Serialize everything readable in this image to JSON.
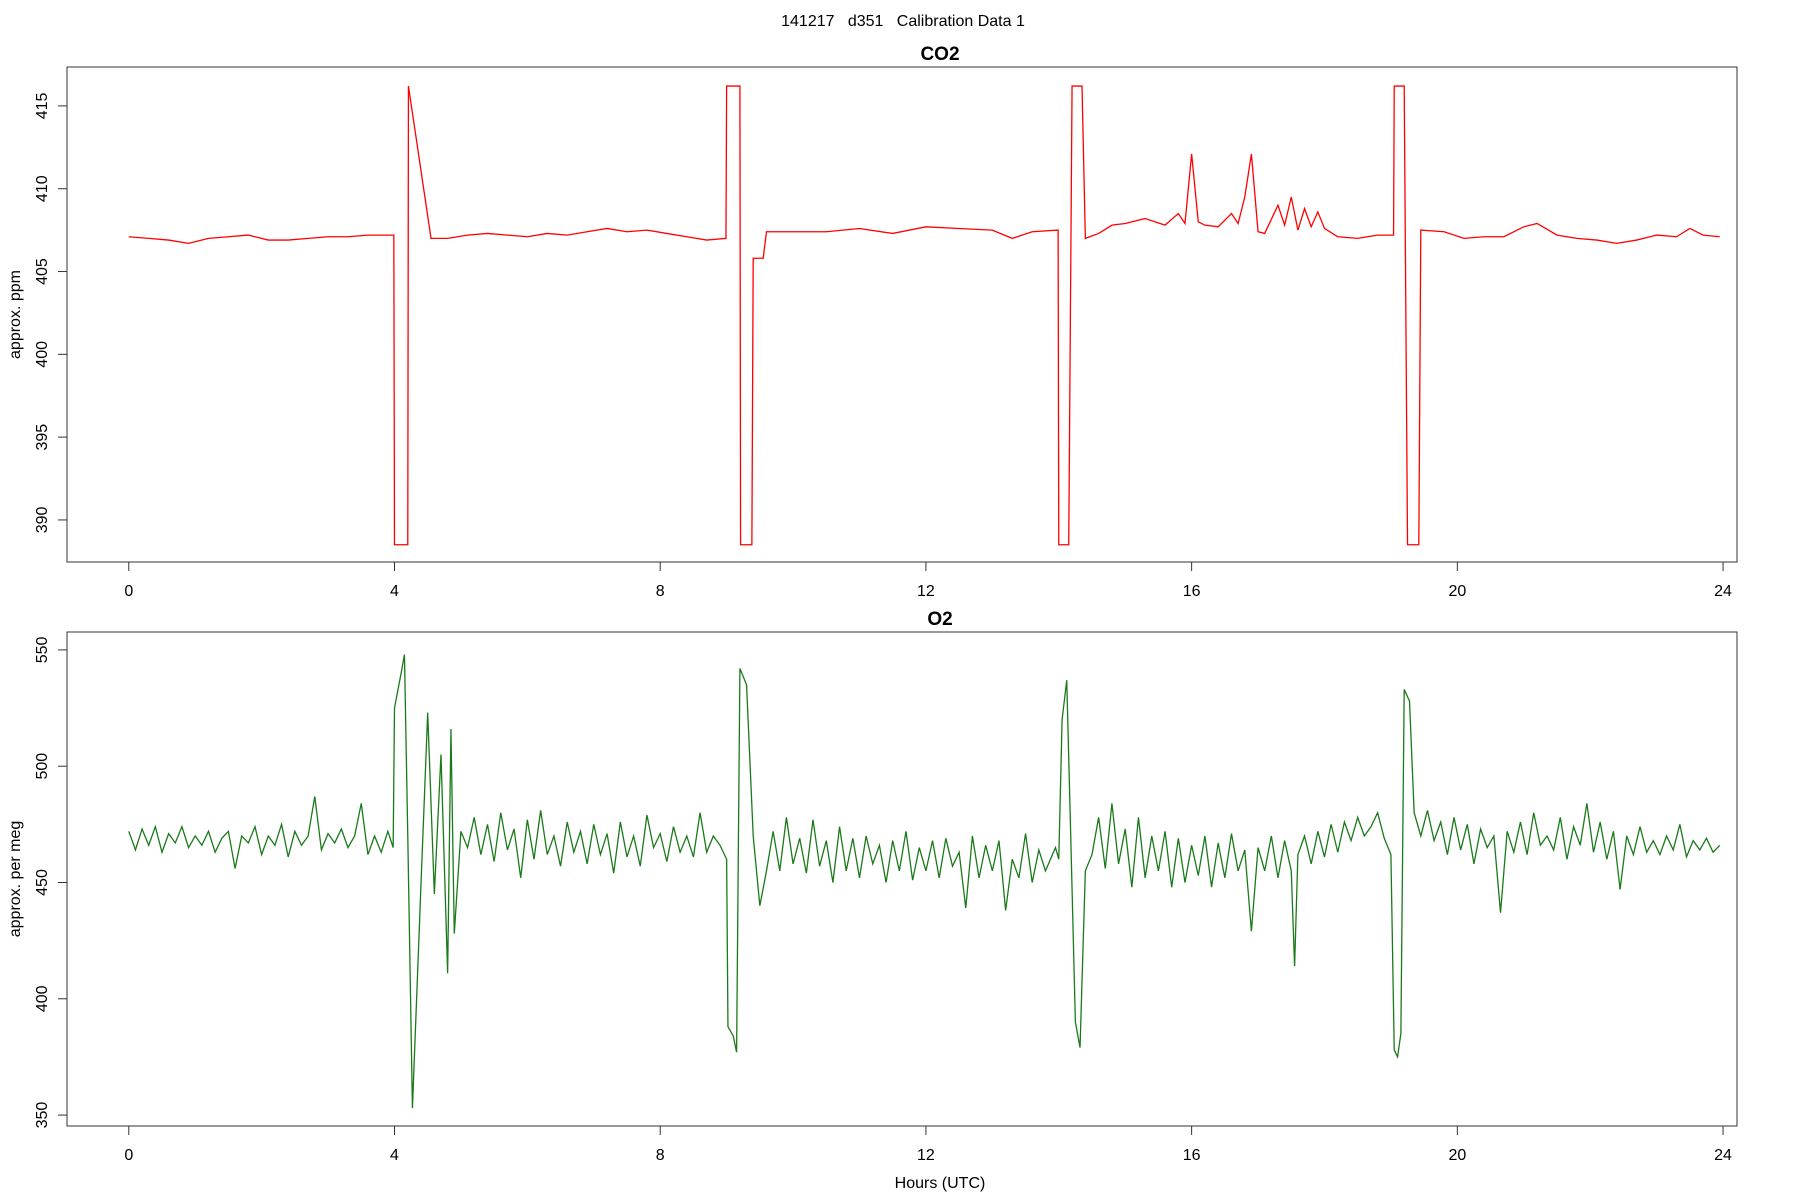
{
  "title": "141217   d351   Calibration Data 1",
  "chart_data": [
    {
      "type": "line",
      "title": "CO2",
      "y_label": "approx. ppm",
      "color": "#ff0000",
      "xlim": [
        -0.93,
        24.21
      ],
      "ylim": [
        387.46,
        417.35
      ],
      "xticks": [
        0,
        4,
        8,
        12,
        16,
        20,
        24
      ],
      "yticks": [
        390,
        395,
        400,
        405,
        410,
        415
      ],
      "x": [
        0,
        0.3,
        0.6,
        0.9,
        1.2,
        1.5,
        1.8,
        2.1,
        2.4,
        2.7,
        3,
        3.3,
        3.6,
        3.99,
        4,
        4.2,
        4.21,
        4.55,
        4.8,
        5.1,
        5.4,
        5.7,
        6,
        6.3,
        6.6,
        6.9,
        7.2,
        7.5,
        7.8,
        8.1,
        8.4,
        8.7,
        8.99,
        9,
        9.2,
        9.21,
        9.38,
        9.4,
        9.55,
        9.6,
        10,
        10.5,
        11,
        11.5,
        12,
        12.5,
        13,
        13.3,
        13.6,
        13.99,
        14,
        14.15,
        14.2,
        14.35,
        14.4,
        14.6,
        14.8,
        15,
        15.3,
        15.6,
        15.8,
        15.9,
        16,
        16.1,
        16.2,
        16.4,
        16.6,
        16.7,
        16.8,
        16.9,
        17,
        17.1,
        17.3,
        17.4,
        17.5,
        17.6,
        17.7,
        17.8,
        17.9,
        18,
        18.2,
        18.5,
        18.8,
        19.04,
        19.05,
        19.2,
        19.25,
        19.42,
        19.45,
        19.8,
        20.1,
        20.4,
        20.7,
        21,
        21.2,
        21.5,
        21.8,
        22.1,
        22.4,
        22.7,
        23,
        23.3,
        23.5,
        23.7,
        23.95
      ],
      "values": [
        407.1,
        407.0,
        406.9,
        406.7,
        407.0,
        407.1,
        407.2,
        406.9,
        406.9,
        407.0,
        407.1,
        407.1,
        407.2,
        407.2,
        388.5,
        388.5,
        416.2,
        407.0,
        407.0,
        407.2,
        407.3,
        407.2,
        407.1,
        407.3,
        407.2,
        407.4,
        407.6,
        407.4,
        407.5,
        407.3,
        407.1,
        406.9,
        407.0,
        416.2,
        416.2,
        388.5,
        388.5,
        405.8,
        405.8,
        407.4,
        407.4,
        407.4,
        407.6,
        407.3,
        407.7,
        407.6,
        407.5,
        407.0,
        407.4,
        407.5,
        388.5,
        388.5,
        416.2,
        416.2,
        407.0,
        407.3,
        407.8,
        407.9,
        408.2,
        407.8,
        408.5,
        407.9,
        412.1,
        408.0,
        407.8,
        407.7,
        408.5,
        407.9,
        409.5,
        412.1,
        407.4,
        407.3,
        409.0,
        407.8,
        409.5,
        407.5,
        408.8,
        407.7,
        408.6,
        407.6,
        407.1,
        407.0,
        407.2,
        407.2,
        416.2,
        416.2,
        388.5,
        388.5,
        407.5,
        407.4,
        407.0,
        407.1,
        407.1,
        407.7,
        407.9,
        407.2,
        407.0,
        406.9,
        406.7,
        406.9,
        407.2,
        407.1,
        407.6,
        407.2,
        407.1
      ]
    },
    {
      "type": "line",
      "title": "O2",
      "y_label": "approx. per meg",
      "x_label": "Hours (UTC)",
      "color": "#1a7a1a",
      "xlim": [
        -0.93,
        24.21
      ],
      "ylim": [
        345.3,
        557.7
      ],
      "xticks": [
        0,
        4,
        8,
        12,
        16,
        20,
        24
      ],
      "yticks": [
        350,
        400,
        450,
        500,
        550
      ],
      "x": [
        0,
        0.1,
        0.2,
        0.3,
        0.4,
        0.5,
        0.6,
        0.7,
        0.8,
        0.9,
        1,
        1.1,
        1.2,
        1.3,
        1.4,
        1.5,
        1.6,
        1.7,
        1.8,
        1.9,
        2,
        2.1,
        2.2,
        2.3,
        2.4,
        2.5,
        2.6,
        2.7,
        2.8,
        2.9,
        3,
        3.1,
        3.2,
        3.3,
        3.4,
        3.5,
        3.6,
        3.7,
        3.8,
        3.9,
        3.98,
        4,
        4.1,
        4.15,
        4.2,
        4.27,
        4.4,
        4.5,
        4.6,
        4.7,
        4.8,
        4.85,
        4.9,
        5,
        5.1,
        5.2,
        5.3,
        5.4,
        5.5,
        5.6,
        5.7,
        5.8,
        5.9,
        6,
        6.1,
        6.2,
        6.3,
        6.4,
        6.5,
        6.6,
        6.7,
        6.8,
        6.9,
        7,
        7.1,
        7.2,
        7.3,
        7.4,
        7.5,
        7.6,
        7.7,
        7.8,
        7.9,
        8,
        8.1,
        8.2,
        8.3,
        8.4,
        8.5,
        8.6,
        8.7,
        8.8,
        8.9,
        9,
        9.02,
        9.1,
        9.15,
        9.2,
        9.3,
        9.4,
        9.5,
        9.6,
        9.7,
        9.8,
        9.9,
        10,
        10.1,
        10.2,
        10.3,
        10.4,
        10.5,
        10.6,
        10.7,
        10.8,
        10.9,
        11,
        11.1,
        11.2,
        11.3,
        11.4,
        11.5,
        11.6,
        11.7,
        11.8,
        11.9,
        12,
        12.1,
        12.2,
        12.3,
        12.4,
        12.5,
        12.6,
        12.7,
        12.8,
        12.9,
        13,
        13.1,
        13.2,
        13.3,
        13.4,
        13.5,
        13.6,
        13.7,
        13.8,
        13.95,
        14,
        14.05,
        14.12,
        14.18,
        14.25,
        14.32,
        14.4,
        14.5,
        14.6,
        14.7,
        14.8,
        14.9,
        15,
        15.1,
        15.2,
        15.3,
        15.4,
        15.5,
        15.6,
        15.7,
        15.8,
        15.9,
        16,
        16.1,
        16.2,
        16.3,
        16.4,
        16.5,
        16.6,
        16.7,
        16.8,
        16.9,
        17,
        17.1,
        17.2,
        17.3,
        17.4,
        17.5,
        17.55,
        17.6,
        17.7,
        17.8,
        17.9,
        18,
        18.1,
        18.2,
        18.3,
        18.4,
        18.5,
        18.6,
        18.7,
        18.8,
        18.9,
        19,
        19.05,
        19.1,
        19.15,
        19.2,
        19.28,
        19.35,
        19.45,
        19.55,
        19.65,
        19.75,
        19.85,
        19.95,
        20.05,
        20.15,
        20.25,
        20.35,
        20.45,
        20.55,
        20.65,
        20.75,
        20.85,
        20.95,
        21.05,
        21.15,
        21.25,
        21.35,
        21.45,
        21.55,
        21.65,
        21.75,
        21.85,
        21.95,
        22.05,
        22.15,
        22.25,
        22.35,
        22.45,
        22.55,
        22.65,
        22.75,
        22.85,
        22.95,
        23.05,
        23.15,
        23.25,
        23.35,
        23.45,
        23.55,
        23.65,
        23.75,
        23.85,
        23.95
      ],
      "values": [
        472,
        464,
        473,
        466,
        474,
        463,
        471,
        467,
        474,
        465,
        470,
        466,
        472,
        463,
        469,
        472,
        456,
        470,
        467,
        474,
        462,
        470,
        466,
        475,
        461,
        472,
        466,
        470,
        487,
        464,
        471,
        467,
        473,
        465,
        470,
        484,
        462,
        470,
        463,
        472,
        465,
        525,
        540,
        548,
        470,
        353,
        450,
        523,
        445,
        505,
        411,
        516,
        428,
        472,
        465,
        478,
        462,
        475,
        459,
        480,
        464,
        473,
        452,
        477,
        460,
        481,
        462,
        470,
        457,
        476,
        463,
        472,
        458,
        475,
        462,
        471,
        454,
        476,
        461,
        470,
        457,
        479,
        465,
        471,
        459,
        474,
        463,
        470,
        461,
        480,
        463,
        470,
        466,
        460,
        388,
        384,
        377,
        542,
        535,
        470,
        440,
        455,
        472,
        455,
        478,
        458,
        469,
        454,
        477,
        457,
        468,
        450,
        474,
        455,
        469,
        452,
        470,
        458,
        466,
        450,
        468,
        455,
        472,
        451,
        465,
        455,
        468,
        452,
        469,
        457,
        463,
        439,
        470,
        452,
        466,
        455,
        468,
        438,
        460,
        452,
        471,
        450,
        464,
        455,
        465,
        460,
        520,
        537,
        470,
        390,
        379,
        455,
        462,
        478,
        456,
        484,
        458,
        473,
        448,
        478,
        452,
        470,
        455,
        472,
        448,
        469,
        450,
        466,
        453,
        470,
        448,
        467,
        452,
        471,
        455,
        464,
        429,
        465,
        455,
        470,
        452,
        468,
        455,
        414,
        462,
        470,
        458,
        472,
        461,
        475,
        463,
        476,
        468,
        478,
        470,
        474,
        480,
        469,
        462,
        378,
        375,
        385,
        533,
        528,
        480,
        470,
        481,
        468,
        476,
        462,
        478,
        464,
        475,
        458,
        473,
        465,
        470,
        437,
        472,
        463,
        476,
        462,
        480,
        466,
        470,
        464,
        478,
        460,
        474,
        466,
        484,
        463,
        476,
        460,
        472,
        447,
        470,
        462,
        474,
        463,
        468,
        462,
        470,
        464,
        475,
        461,
        468,
        464,
        469,
        463,
        466
      ]
    }
  ]
}
